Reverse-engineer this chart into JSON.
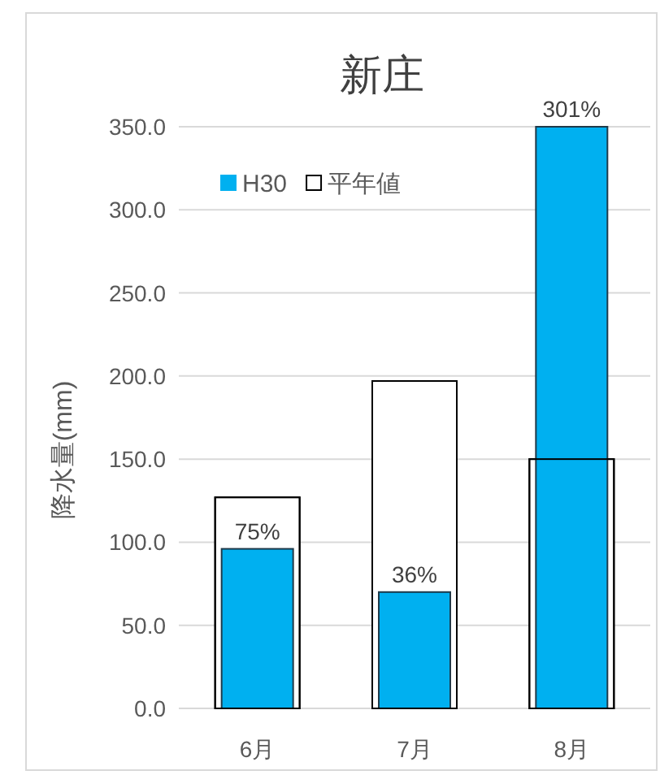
{
  "chart_data": {
    "type": "bar",
    "title": "新庄",
    "ylabel": "降水量(mm)",
    "categories": [
      "6月",
      "7月",
      "8月"
    ],
    "series": [
      {
        "name": "平年値",
        "color": "#ffffff",
        "values": [
          127,
          197,
          150
        ]
      },
      {
        "name": "H30",
        "color": "#00b0f0",
        "values": [
          96,
          70,
          350
        ]
      }
    ],
    "ylim": [
      0,
      350
    ],
    "yticks": [
      {
        "value": 0,
        "label": "0.0"
      },
      {
        "value": 50,
        "label": "50.0"
      },
      {
        "value": 100,
        "label": "100.0"
      },
      {
        "value": 150,
        "label": "150.0"
      },
      {
        "value": 200,
        "label": "200.0"
      },
      {
        "value": 250,
        "label": "250.0"
      },
      {
        "value": 300,
        "label": "300.0"
      },
      {
        "value": 350,
        "label": "350.0"
      }
    ],
    "grid": "y",
    "legend": "top left",
    "annotations": [
      {
        "text": "75%",
        "x": "6月",
        "y": 96
      },
      {
        "text": "36%",
        "x": "7月",
        "y": 70
      },
      {
        "text": "301%",
        "x": "8月",
        "y": 350
      }
    ]
  }
}
